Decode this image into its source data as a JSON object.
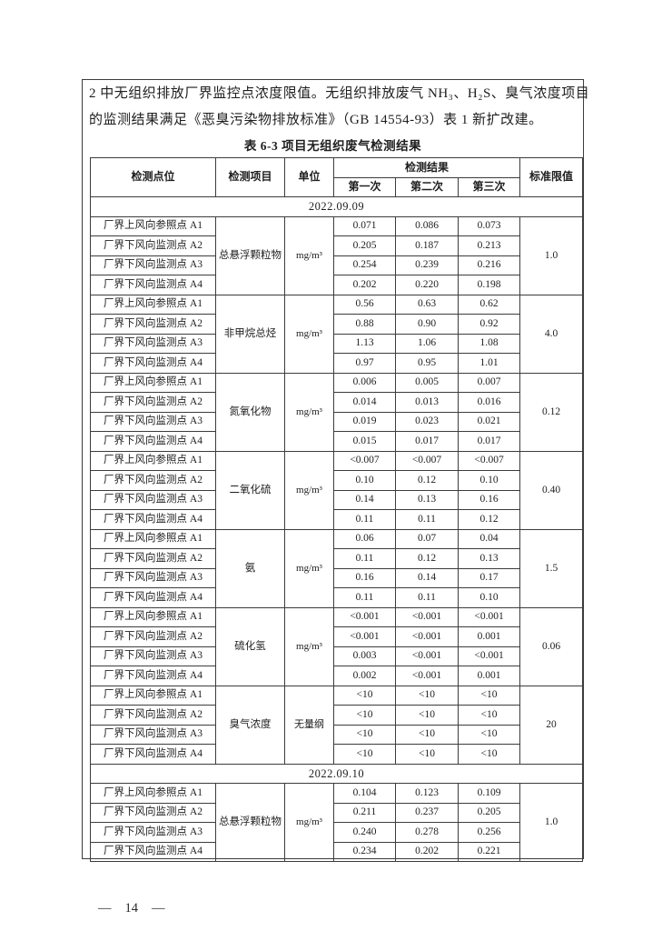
{
  "intro": {
    "line1": "2 中无组织排放厂界监控点浓度限值。无组织排放废气 NH₃、H₂S、臭气浓度项目",
    "line2": "的监测结果满足《恶臭污染物排放标准》（GB 14554-93）表 1 新扩改建。"
  },
  "table": {
    "title": "表 6-3  项目无组织废气检测结果",
    "headers": {
      "point": "检测点位",
      "item": "检测项目",
      "unit": "单位",
      "results": "检测结果",
      "first": "第一次",
      "second": "第二次",
      "third": "第三次",
      "limit": "标准限值"
    },
    "sections": [
      {
        "date": "2022.09.09",
        "groups": [
          {
            "item": "总悬浮颗粒物",
            "unit": "mg/m³",
            "limit": "1.0",
            "rows": [
              {
                "point": "厂界上风向参照点 A1",
                "values": [
                  "0.071",
                  "0.086",
                  "0.073"
                ]
              },
              {
                "point": "厂界下风向监测点 A2",
                "values": [
                  "0.205",
                  "0.187",
                  "0.213"
                ]
              },
              {
                "point": "厂界下风向监测点 A3",
                "values": [
                  "0.254",
                  "0.239",
                  "0.216"
                ]
              },
              {
                "point": "厂界下风向监测点 A4",
                "values": [
                  "0.202",
                  "0.220",
                  "0.198"
                ]
              }
            ]
          },
          {
            "item": "非甲烷总烃",
            "unit": "mg/m³",
            "limit": "4.0",
            "rows": [
              {
                "point": "厂界上风向参照点 A1",
                "values": [
                  "0.56",
                  "0.63",
                  "0.62"
                ]
              },
              {
                "point": "厂界下风向监测点 A2",
                "values": [
                  "0.88",
                  "0.90",
                  "0.92"
                ]
              },
              {
                "point": "厂界下风向监测点 A3",
                "values": [
                  "1.13",
                  "1.06",
                  "1.08"
                ]
              },
              {
                "point": "厂界下风向监测点 A4",
                "values": [
                  "0.97",
                  "0.95",
                  "1.01"
                ]
              }
            ]
          },
          {
            "item": "氮氧化物",
            "unit": "mg/m³",
            "limit": "0.12",
            "rows": [
              {
                "point": "厂界上风向参照点 A1",
                "values": [
                  "0.006",
                  "0.005",
                  "0.007"
                ]
              },
              {
                "point": "厂界下风向监测点 A2",
                "values": [
                  "0.014",
                  "0.013",
                  "0.016"
                ]
              },
              {
                "point": "厂界下风向监测点 A3",
                "values": [
                  "0.019",
                  "0.023",
                  "0.021"
                ]
              },
              {
                "point": "厂界下风向监测点 A4",
                "values": [
                  "0.015",
                  "0.017",
                  "0.017"
                ]
              }
            ]
          },
          {
            "item": "二氧化硫",
            "unit": "mg/m³",
            "limit": "0.40",
            "rows": [
              {
                "point": "厂界上风向参照点 A1",
                "values": [
                  "<0.007",
                  "<0.007",
                  "<0.007"
                ]
              },
              {
                "point": "厂界下风向监测点 A2",
                "values": [
                  "0.10",
                  "0.12",
                  "0.10"
                ]
              },
              {
                "point": "厂界下风向监测点 A3",
                "values": [
                  "0.14",
                  "0.13",
                  "0.16"
                ]
              },
              {
                "point": "厂界下风向监测点 A4",
                "values": [
                  "0.11",
                  "0.11",
                  "0.12"
                ]
              }
            ]
          },
          {
            "item": "氨",
            "unit": "mg/m³",
            "limit": "1.5",
            "rows": [
              {
                "point": "厂界上风向参照点 A1",
                "values": [
                  "0.06",
                  "0.07",
                  "0.04"
                ]
              },
              {
                "point": "厂界下风向监测点 A2",
                "values": [
                  "0.11",
                  "0.12",
                  "0.13"
                ]
              },
              {
                "point": "厂界下风向监测点 A3",
                "values": [
                  "0.16",
                  "0.14",
                  "0.17"
                ]
              },
              {
                "point": "厂界下风向监测点 A4",
                "values": [
                  "0.11",
                  "0.11",
                  "0.10"
                ]
              }
            ]
          },
          {
            "item": "硫化氢",
            "unit": "mg/m³",
            "limit": "0.06",
            "rows": [
              {
                "point": "厂界上风向参照点 A1",
                "values": [
                  "<0.001",
                  "<0.001",
                  "<0.001"
                ]
              },
              {
                "point": "厂界下风向监测点 A2",
                "values": [
                  "<0.001",
                  "<0.001",
                  "0.001"
                ]
              },
              {
                "point": "厂界下风向监测点 A3",
                "values": [
                  "0.003",
                  "<0.001",
                  "<0.001"
                ]
              },
              {
                "point": "厂界下风向监测点 A4",
                "values": [
                  "0.002",
                  "<0.001",
                  "0.001"
                ]
              }
            ]
          },
          {
            "item": "臭气浓度",
            "unit": "无量纲",
            "limit": "20",
            "rows": [
              {
                "point": "厂界上风向参照点 A1",
                "values": [
                  "<10",
                  "<10",
                  "<10"
                ]
              },
              {
                "point": "厂界下风向监测点 A2",
                "values": [
                  "<10",
                  "<10",
                  "<10"
                ]
              },
              {
                "point": "厂界下风向监测点 A3",
                "values": [
                  "<10",
                  "<10",
                  "<10"
                ]
              },
              {
                "point": "厂界下风向监测点 A4",
                "values": [
                  "<10",
                  "<10",
                  "<10"
                ]
              }
            ]
          }
        ]
      },
      {
        "date": "2022.09.10",
        "groups": [
          {
            "item": "总悬浮颗粒物",
            "unit": "mg/m³",
            "limit": "1.0",
            "rows": [
              {
                "point": "厂界上风向参照点 A1",
                "values": [
                  "0.104",
                  "0.123",
                  "0.109"
                ]
              },
              {
                "point": "厂界下风向监测点 A2",
                "values": [
                  "0.211",
                  "0.237",
                  "0.205"
                ]
              },
              {
                "point": "厂界下风向监测点 A3",
                "values": [
                  "0.240",
                  "0.278",
                  "0.256"
                ]
              },
              {
                "point": "厂界下风向监测点 A4",
                "values": [
                  "0.234",
                  "0.202",
                  "0.221"
                ]
              }
            ]
          }
        ]
      }
    ]
  },
  "footer": {
    "left_dash": "—",
    "page_number": "14",
    "right_dash": "—"
  }
}
